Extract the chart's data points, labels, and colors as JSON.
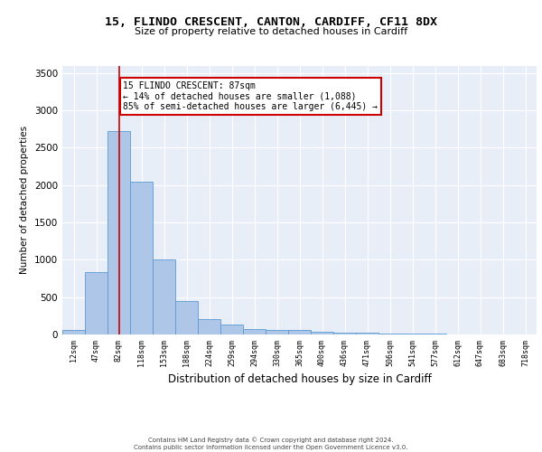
{
  "title1": "15, FLINDO CRESCENT, CANTON, CARDIFF, CF11 8DX",
  "title2": "Size of property relative to detached houses in Cardiff",
  "xlabel": "Distribution of detached houses by size in Cardiff",
  "ylabel": "Number of detached properties",
  "categories": [
    "12sqm",
    "47sqm",
    "82sqm",
    "118sqm",
    "153sqm",
    "188sqm",
    "224sqm",
    "259sqm",
    "294sqm",
    "330sqm",
    "365sqm",
    "400sqm",
    "436sqm",
    "471sqm",
    "506sqm",
    "541sqm",
    "577sqm",
    "612sqm",
    "647sqm",
    "683sqm",
    "718sqm"
  ],
  "values": [
    60,
    840,
    2720,
    2050,
    1000,
    450,
    200,
    130,
    75,
    60,
    55,
    35,
    30,
    20,
    15,
    10,
    8,
    5,
    3,
    2,
    1
  ],
  "bar_color": "#aec6e8",
  "bar_edge_color": "#5a9ad4",
  "bg_color": "#e8eef8",
  "grid_color": "#ffffff",
  "vline_x_index": 2,
  "vline_color": "#cc0000",
  "annotation_text": "15 FLINDO CRESCENT: 87sqm\n← 14% of detached houses are smaller (1,088)\n85% of semi-detached houses are larger (6,445) →",
  "annotation_box_facecolor": "#ffffff",
  "annotation_border_color": "#cc0000",
  "ylim": [
    0,
    3600
  ],
  "yticks": [
    0,
    500,
    1000,
    1500,
    2000,
    2500,
    3000,
    3500
  ],
  "footer1": "Contains HM Land Registry data © Crown copyright and database right 2024.",
  "footer2": "Contains public sector information licensed under the Open Government Licence v3.0."
}
